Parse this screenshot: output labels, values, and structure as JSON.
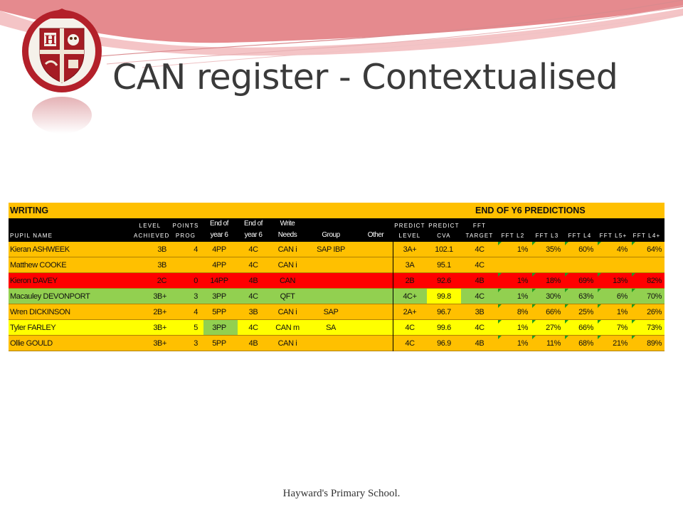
{
  "slide": {
    "title": "CAN register - Contextualised",
    "footer": "Hayward's Primary School."
  },
  "table": {
    "band_left": "WRITING",
    "band_right": "END OF Y6 PREDICTIONS",
    "headers": {
      "pupil_name": "PUPIL NAME",
      "level_1": "LEVEL",
      "level_2": "ACHIEVED",
      "points_1": "POINTS",
      "points_2": "PROG",
      "endy6a_1": "End of",
      "endy6a_2": "year 6",
      "endy6b_1": "End of",
      "endy6b_2": "year 6",
      "write_1": "Write",
      "write_2": "Needs",
      "group": "Group",
      "other": "Other",
      "pl_1": "PREDICT",
      "pl_2": "LEVEL",
      "pc_1": "PREDICT",
      "pc_2": "CVA",
      "ft_1": "FFT",
      "ft_2": "TARGET",
      "f2": "FFT L2",
      "f3": "FFT L3",
      "f4": "FFT L4",
      "f5": "FFT L5+",
      "f4p": "FFT L4+"
    },
    "colors": {
      "orange": "#ffc000",
      "red": "#ff0000",
      "green": "#92d050",
      "yellow": "#ffff00"
    },
    "rows": [
      {
        "name": "Kieran ASHWEEK",
        "level": "3B",
        "points": "4",
        "end_a": "4PP",
        "end_b": "4C",
        "needs": "CAN i",
        "group": "SAP IBP",
        "other": "",
        "pred_level": "3A+",
        "pred_cva": "102.1",
        "target": "4C",
        "l2": "1%",
        "l3": "35%",
        "l4": "60%",
        "l5": "4%",
        "l4p": "64%",
        "row_color": "orange"
      },
      {
        "name": "Matthew COOKE",
        "level": "3B",
        "points": "",
        "end_a": "4PP",
        "end_b": "4C",
        "needs": "CAN i",
        "group": "",
        "other": "",
        "pred_level": "3A",
        "pred_cva": "95.1",
        "target": "4C",
        "l2": "",
        "l3": "",
        "l4": "",
        "l5": "",
        "l4p": "",
        "row_color": "orange"
      },
      {
        "name": "Kieron DAVEY",
        "level": "2C",
        "points": "0",
        "end_a": "14PP",
        "end_b": "4B",
        "needs": "CAN",
        "group": "",
        "other": "",
        "pred_level": "2B",
        "pred_cva": "92.6",
        "target": "4B",
        "l2": "1%",
        "l3": "18%",
        "l4": "69%",
        "l5": "13%",
        "l4p": "82%",
        "row_color": "red"
      },
      {
        "name": "Macauley DEVONPORT",
        "level": "3B+",
        "points": "3",
        "end_a": "3PP",
        "end_b": "4C",
        "needs": "QFT",
        "group": "",
        "other": "",
        "pred_level": "4C+",
        "pred_cva": "99.8",
        "target": "4C",
        "l2": "1%",
        "l3": "30%",
        "l4": "63%",
        "l5": "6%",
        "l4p": "70%",
        "row_color": "green"
      },
      {
        "name": "Wren DICKINSON",
        "level": "2B+",
        "points": "4",
        "end_a": "5PP",
        "end_b": "3B",
        "needs": "CAN i",
        "group": "SAP",
        "other": "",
        "pred_level": "2A+",
        "pred_cva": "96.7",
        "target": "3B",
        "l2": "8%",
        "l3": "66%",
        "l4": "25%",
        "l5": "1%",
        "l4p": "26%",
        "row_color": "orange"
      },
      {
        "name": "Tyler FARLEY",
        "level": "3B+",
        "points": "5",
        "end_a": "3PP",
        "end_b": "4C",
        "needs": "CAN m",
        "group": "SA",
        "other": "",
        "pred_level": "4C",
        "pred_cva": "99.6",
        "target": "4C",
        "l2": "1%",
        "l3": "27%",
        "l4": "66%",
        "l5": "7%",
        "l4p": "73%",
        "row_color": "yellow"
      },
      {
        "name": "Ollie GOULD",
        "level": "3B+",
        "points": "3",
        "end_a": "5PP",
        "end_b": "4B",
        "needs": "CAN i",
        "group": "",
        "other": "",
        "pred_level": "4C",
        "pred_cva": "96.9",
        "target": "4B",
        "l2": "1%",
        "l3": "11%",
        "l4": "68%",
        "l5": "21%",
        "l4p": "89%",
        "row_color": "orange"
      }
    ]
  }
}
